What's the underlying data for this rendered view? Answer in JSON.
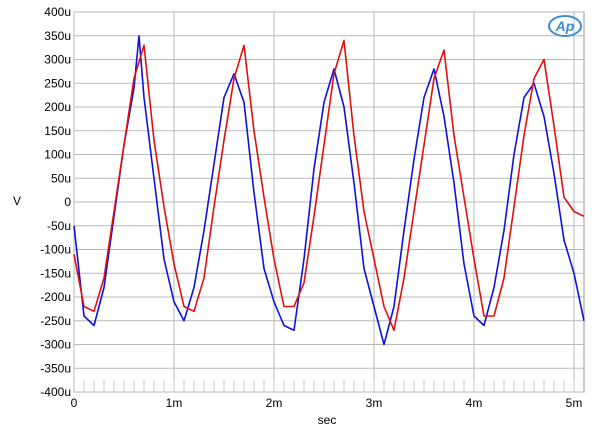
{
  "chart_data": {
    "type": "line",
    "xlabel": "sec",
    "ylabel": "V",
    "xlim": [
      0,
      0.0051
    ],
    "ylim": [
      -0.0004,
      0.0004
    ],
    "grid": true,
    "x_ticks": [
      {
        "value": 0,
        "label": "0"
      },
      {
        "value": 0.001,
        "label": "1m"
      },
      {
        "value": 0.002,
        "label": "2m"
      },
      {
        "value": 0.003,
        "label": "3m"
      },
      {
        "value": 0.004,
        "label": "4m"
      },
      {
        "value": 0.005,
        "label": "5m"
      }
    ],
    "y_ticks": [
      {
        "value": 0.0004,
        "label": "400u"
      },
      {
        "value": 0.00035,
        "label": "350u"
      },
      {
        "value": 0.0003,
        "label": "300u"
      },
      {
        "value": 0.00025,
        "label": "250u"
      },
      {
        "value": 0.0002,
        "label": "200u"
      },
      {
        "value": 0.00015,
        "label": "150u"
      },
      {
        "value": 0.0001,
        "label": "100u"
      },
      {
        "value": 5e-05,
        "label": "50u"
      },
      {
        "value": 0,
        "label": "0"
      },
      {
        "value": -5e-05,
        "label": "-50u"
      },
      {
        "value": -0.0001,
        "label": "-100u"
      },
      {
        "value": -0.00015,
        "label": "-150u"
      },
      {
        "value": -0.0002,
        "label": "-200u"
      },
      {
        "value": -0.00025,
        "label": "-250u"
      },
      {
        "value": -0.0003,
        "label": "-300u"
      },
      {
        "value": -0.00035,
        "label": "-350u"
      },
      {
        "value": -0.0004,
        "label": "-400u"
      }
    ],
    "series": [
      {
        "color": "#1010e0",
        "x": [
          0,
          0.0001,
          0.0002,
          0.0003,
          0.0004,
          0.0005,
          0.0006,
          0.00065,
          0.0007,
          0.0008,
          0.0009,
          0.001,
          0.0011,
          0.0012,
          0.0013,
          0.0014,
          0.0015,
          0.0016,
          0.0017,
          0.0018,
          0.0019,
          0.002,
          0.0021,
          0.0022,
          0.0023,
          0.0024,
          0.0025,
          0.0026,
          0.0027,
          0.0028,
          0.0029,
          0.003,
          0.0031,
          0.0032,
          0.0033,
          0.0034,
          0.0035,
          0.0036,
          0.0037,
          0.0038,
          0.0039,
          0.004,
          0.0041,
          0.0042,
          0.0043,
          0.0044,
          0.0045,
          0.0046,
          0.0047,
          0.0048,
          0.0049,
          0.005,
          0.0051
        ],
        "y": [
          -5e-05,
          -0.00024,
          -0.00026,
          -0.00018,
          -3e-05,
          0.00012,
          0.00024,
          0.00035,
          0.00022,
          5e-05,
          -0.00012,
          -0.00021,
          -0.00025,
          -0.00018,
          -6e-05,
          8e-05,
          0.00022,
          0.00027,
          0.00021,
          2e-05,
          -0.00014,
          -0.00021,
          -0.00026,
          -0.00027,
          -0.00012,
          7e-05,
          0.00021,
          0.00028,
          0.0002,
          4e-05,
          -0.00014,
          -0.00022,
          -0.0003,
          -0.00022,
          -6e-05,
          9e-05,
          0.00022,
          0.00028,
          0.00018,
          4e-05,
          -0.00013,
          -0.00024,
          -0.00026,
          -0.00018,
          -6e-05,
          0.0001,
          0.00022,
          0.00025,
          0.00018,
          6e-05,
          -8e-05,
          -0.00015,
          -0.00025
        ]
      },
      {
        "color": "#e01010",
        "x": [
          0,
          0.0001,
          0.0002,
          0.0003,
          0.0004,
          0.0005,
          0.0006,
          0.0007,
          0.0008,
          0.0009,
          0.001,
          0.0011,
          0.0012,
          0.0013,
          0.0014,
          0.0015,
          0.0016,
          0.0017,
          0.0018,
          0.0019,
          0.002,
          0.0021,
          0.0022,
          0.0023,
          0.0024,
          0.0025,
          0.0026,
          0.0027,
          0.0028,
          0.0029,
          0.003,
          0.0031,
          0.0032,
          0.0033,
          0.0034,
          0.0035,
          0.0036,
          0.0037,
          0.0038,
          0.0039,
          0.004,
          0.0041,
          0.0042,
          0.0043,
          0.0044,
          0.0045,
          0.0046,
          0.0047,
          0.0048,
          0.0049,
          0.005,
          0.0051
        ],
        "y": [
          -0.00011,
          -0.00022,
          -0.00023,
          -0.00016,
          -2e-05,
          0.00012,
          0.00026,
          0.00033,
          0.00013,
          -1e-05,
          -0.00013,
          -0.00022,
          -0.00023,
          -0.00016,
          -1e-05,
          0.00013,
          0.00026,
          0.00033,
          0.00015,
          1e-05,
          -0.00012,
          -0.00022,
          -0.00022,
          -0.00017,
          -3e-05,
          0.00012,
          0.00027,
          0.00034,
          0.00014,
          -2e-05,
          -0.00012,
          -0.00022,
          -0.00027,
          -0.00016,
          -2e-05,
          0.00012,
          0.00026,
          0.00032,
          0.00014,
          1e-05,
          -0.00012,
          -0.00024,
          -0.00024,
          -0.00016,
          -1e-05,
          0.00014,
          0.00026,
          0.0003,
          0.00016,
          1e-05,
          -2e-05,
          -3e-05
        ]
      }
    ]
  },
  "logo": {
    "text": "Ap",
    "color": "#3b8fd0"
  }
}
